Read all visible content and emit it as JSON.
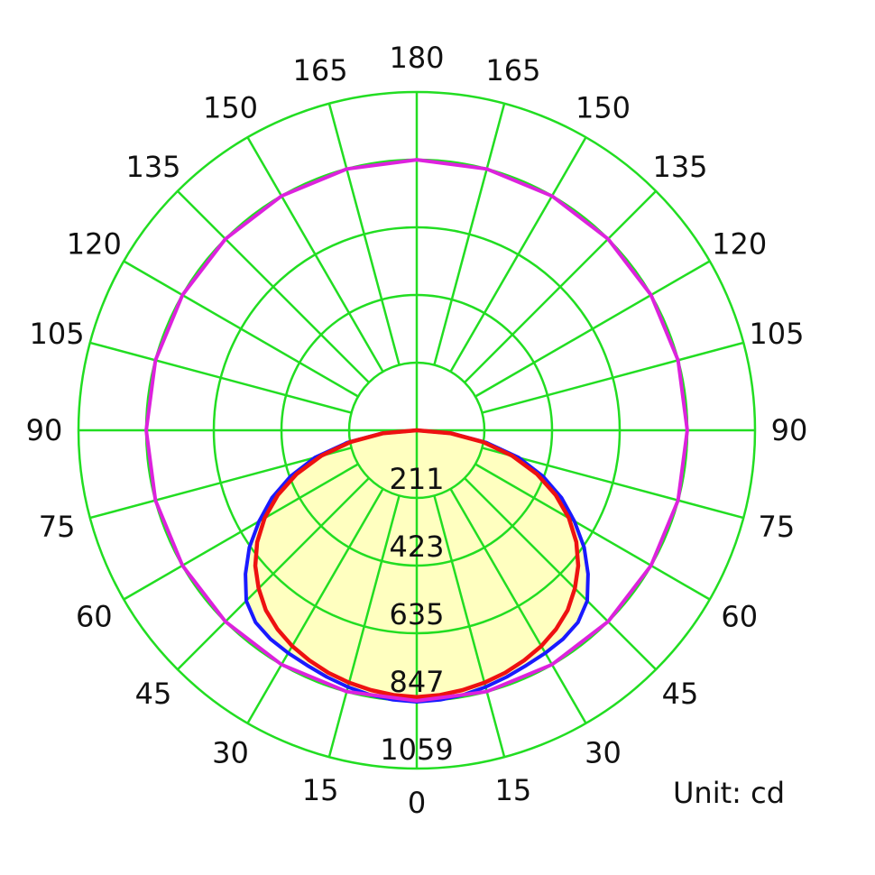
{
  "chart_data": {
    "type": "polar",
    "title": "",
    "unit_label": "Unit: cd",
    "radial_labels": [
      "211",
      "423",
      "635",
      "847",
      "1059"
    ],
    "radial_values": [
      211,
      423,
      635,
      847,
      1059
    ],
    "radial_max": 1059,
    "angle_labels": {
      "right": [
        "0",
        "15",
        "30",
        "45",
        "60",
        "75",
        "90",
        "105",
        "120",
        "135",
        "150",
        "165"
      ],
      "left": [
        "15",
        "30",
        "45",
        "60",
        "75",
        "90",
        "105",
        "120",
        "135",
        "150",
        "165"
      ],
      "top": "180"
    },
    "angles_deg": [
      0,
      15,
      30,
      45,
      60,
      75,
      90,
      105,
      120,
      135,
      150,
      165,
      180
    ],
    "grid": true,
    "colors": {
      "grid": "#22dd22",
      "fill": "#ffffc0",
      "series_blue": "#1a1aff",
      "series_red": "#ee1111",
      "series_magenta": "#dd22dd"
    },
    "series": [
      {
        "key": "blue",
        "angles": [
          0,
          5,
          10,
          15,
          20,
          25,
          30,
          35,
          40,
          45,
          50,
          55,
          60,
          65,
          70,
          75,
          80,
          85,
          90
        ],
        "values": [
          850,
          847,
          841,
          832,
          822,
          812,
          805,
          798,
          785,
          755,
          700,
          640,
          570,
          500,
          420,
          330,
          220,
          110,
          0
        ]
      },
      {
        "key": "red",
        "angles": [
          0,
          5,
          10,
          15,
          20,
          25,
          30,
          35,
          40,
          45,
          50,
          55,
          60,
          65,
          70,
          75,
          80,
          85,
          90
        ],
        "values": [
          835,
          832,
          826,
          818,
          808,
          795,
          780,
          760,
          735,
          700,
          660,
          610,
          550,
          480,
          400,
          310,
          210,
          105,
          0
        ]
      },
      {
        "key": "magenta",
        "angles": [
          0,
          15,
          30,
          45,
          60,
          75,
          90,
          105,
          120,
          135,
          150,
          165,
          180
        ],
        "values": [
          847,
          847,
          847,
          847,
          847,
          847,
          847,
          847,
          847,
          847,
          847,
          847,
          847
        ]
      }
    ]
  }
}
